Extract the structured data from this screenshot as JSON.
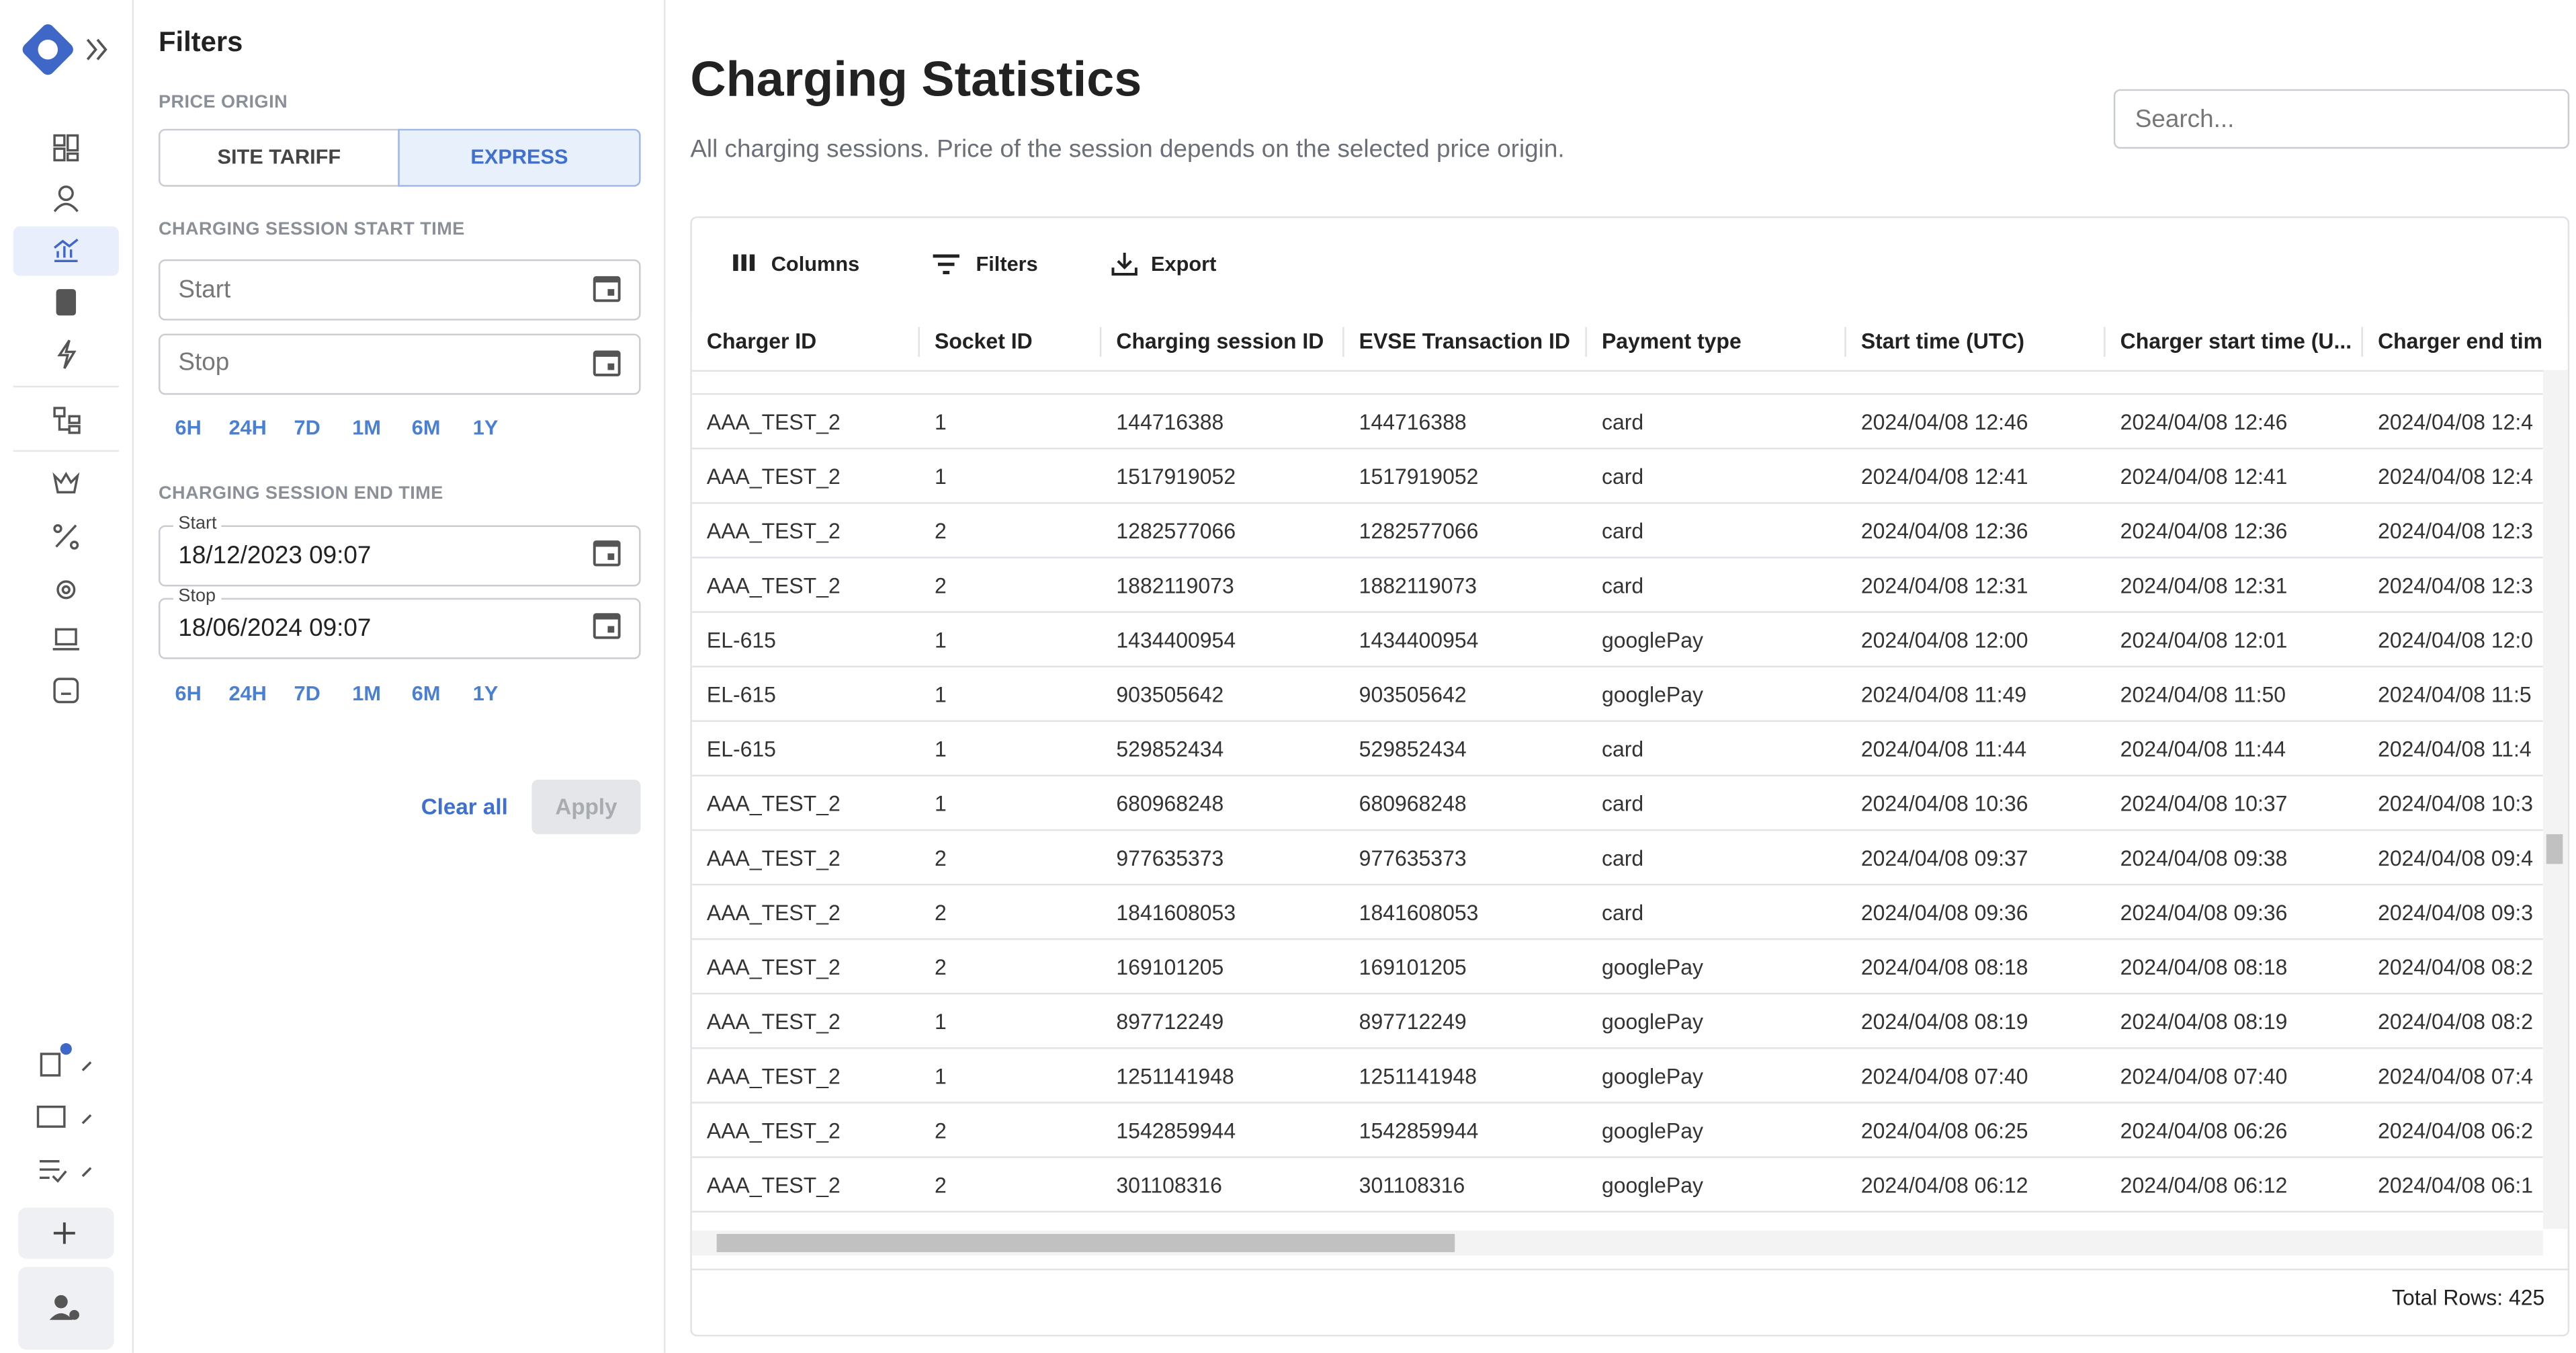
{
  "sidebar": {
    "title": "Filters",
    "price_origin": {
      "label": "PRICE ORIGIN",
      "options": [
        "SITE TARIFF",
        "EXPRESS"
      ]
    },
    "start_time": {
      "label": "CHARGING SESSION START TIME",
      "start": "Start",
      "stop": "Stop",
      "ranges": [
        "6H",
        "24H",
        "7D",
        "1M",
        "6M",
        "1Y"
      ]
    },
    "end_time": {
      "label": "CHARGING SESSION END TIME",
      "start_label": "Start",
      "start_value": "18/12/2023 09:07",
      "stop_label": "Stop",
      "stop_value": "18/06/2024 09:07",
      "ranges": [
        "6H",
        "24H",
        "7D",
        "1M",
        "6M",
        "1Y"
      ]
    },
    "clear": "Clear all",
    "apply": "Apply"
  },
  "header": {
    "title": "Charging Statistics",
    "subtitle": "All charging sessions. Price of the session depends on the selected price origin.",
    "search_placeholder": "Search..."
  },
  "toolbar": [
    "Columns",
    "Filters",
    "Export"
  ],
  "table": {
    "columns": [
      "Charger ID",
      "Socket ID",
      "Charging session ID",
      "EVSE Transaction ID",
      "Payment type",
      "Start time (UTC)",
      "Charger start time (U...",
      "Charger end time ("
    ],
    "rows": [
      [
        "AAA_TEST_2",
        "1",
        "144716388",
        "144716388",
        "card",
        "2024/04/08 12:46",
        "2024/04/08 12:46",
        "2024/04/08 12:4"
      ],
      [
        "AAA_TEST_2",
        "1",
        "1517919052",
        "1517919052",
        "card",
        "2024/04/08 12:41",
        "2024/04/08 12:41",
        "2024/04/08 12:4"
      ],
      [
        "AAA_TEST_2",
        "2",
        "1282577066",
        "1282577066",
        "card",
        "2024/04/08 12:36",
        "2024/04/08 12:36",
        "2024/04/08 12:3"
      ],
      [
        "AAA_TEST_2",
        "2",
        "1882119073",
        "1882119073",
        "card",
        "2024/04/08 12:31",
        "2024/04/08 12:31",
        "2024/04/08 12:3"
      ],
      [
        "EL-615",
        "1",
        "1434400954",
        "1434400954",
        "googlePay",
        "2024/04/08 12:00",
        "2024/04/08 12:01",
        "2024/04/08 12:0"
      ],
      [
        "EL-615",
        "1",
        "903505642",
        "903505642",
        "googlePay",
        "2024/04/08 11:49",
        "2024/04/08 11:50",
        "2024/04/08 11:5"
      ],
      [
        "EL-615",
        "1",
        "529852434",
        "529852434",
        "card",
        "2024/04/08 11:44",
        "2024/04/08 11:44",
        "2024/04/08 11:4"
      ],
      [
        "AAA_TEST_2",
        "1",
        "680968248",
        "680968248",
        "card",
        "2024/04/08 10:36",
        "2024/04/08 10:37",
        "2024/04/08 10:3"
      ],
      [
        "AAA_TEST_2",
        "2",
        "977635373",
        "977635373",
        "card",
        "2024/04/08 09:37",
        "2024/04/08 09:38",
        "2024/04/08 09:4"
      ],
      [
        "AAA_TEST_2",
        "2",
        "1841608053",
        "1841608053",
        "card",
        "2024/04/08 09:36",
        "2024/04/08 09:36",
        "2024/04/08 09:3"
      ],
      [
        "AAA_TEST_2",
        "2",
        "169101205",
        "169101205",
        "googlePay",
        "2024/04/08 08:18",
        "2024/04/08 08:18",
        "2024/04/08 08:2"
      ],
      [
        "AAA_TEST_2",
        "1",
        "897712249",
        "897712249",
        "googlePay",
        "2024/04/08 08:19",
        "2024/04/08 08:19",
        "2024/04/08 08:2"
      ],
      [
        "AAA_TEST_2",
        "1",
        "1251141948",
        "1251141948",
        "googlePay",
        "2024/04/08 07:40",
        "2024/04/08 07:40",
        "2024/04/08 07:4"
      ],
      [
        "AAA_TEST_2",
        "2",
        "1542859944",
        "1542859944",
        "googlePay",
        "2024/04/08 06:25",
        "2024/04/08 06:26",
        "2024/04/08 06:2"
      ],
      [
        "AAA_TEST_2",
        "2",
        "301108316",
        "301108316",
        "googlePay",
        "2024/04/08 06:12",
        "2024/04/08 06:12",
        "2024/04/08 06:1"
      ]
    ]
  },
  "footer": "Total Rows: 425"
}
